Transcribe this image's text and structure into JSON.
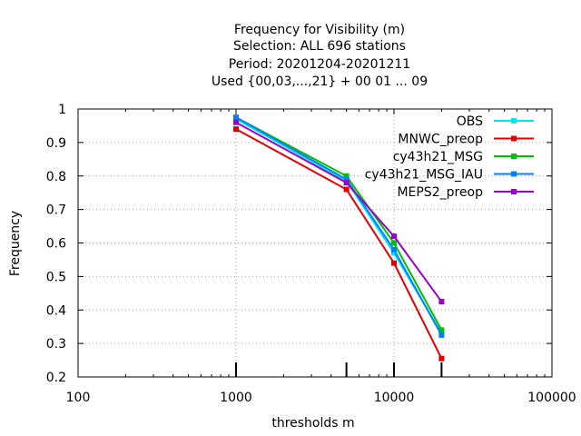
{
  "chart_data": {
    "type": "line",
    "title_lines": [
      "Frequency  for Visibility (m)",
      "Selection: ALL    696 stations",
      "Period: 20201204-20201211",
      "Used {00,03,...,21} + 00 01 ... 09"
    ],
    "xlabel": "thresholds m",
    "ylabel": "Frequency",
    "x_scale": "log",
    "xlim": [
      100,
      100000
    ],
    "ylim": [
      0.2,
      1
    ],
    "x_ticks": [
      100,
      1000,
      10000,
      100000
    ],
    "x_tick_labels": [
      "100",
      "1000",
      "10000",
      "100000"
    ],
    "y_ticks": [
      0.2,
      0.3,
      0.4,
      0.5,
      0.6,
      0.7,
      0.8,
      0.9,
      1
    ],
    "y_tick_labels": [
      "0.2",
      "0.3",
      "0.4",
      "0.5",
      "0.6",
      "0.7",
      "0.8",
      "0.9",
      "1"
    ],
    "grid": true,
    "legend_position": "top-right",
    "x": [
      1000,
      5000,
      10000,
      20000
    ],
    "series": [
      {
        "name": "OBS",
        "color": "#00e5ee",
        "values": [
          0.97,
          0.785,
          0.57,
          0.33
        ]
      },
      {
        "name": "MNWC_preop",
        "color": "#e00000",
        "values": [
          0.94,
          0.76,
          0.54,
          0.255
        ]
      },
      {
        "name": "cy43h21_MSG",
        "color": "#00c000",
        "values": [
          0.975,
          0.8,
          0.6,
          0.34
        ]
      },
      {
        "name": "cy43h21_MSG_IAU",
        "color": "#0080ff",
        "values": [
          0.975,
          0.79,
          0.58,
          0.325
        ]
      },
      {
        "name": "MEPS2_preop",
        "color": "#9900cc",
        "values": [
          0.96,
          0.78,
          0.62,
          0.425
        ]
      }
    ]
  }
}
